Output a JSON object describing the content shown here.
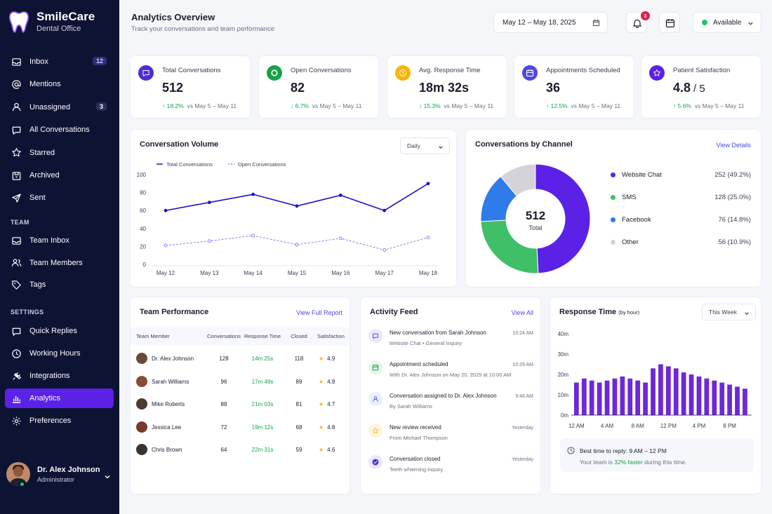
{
  "brand": {
    "name": "SmileCare",
    "subtitle": "Dental Office"
  },
  "nav": [
    {
      "label": "Inbox",
      "icon": "inbox-icon",
      "badge": "12"
    },
    {
      "label": "Mentions",
      "icon": "at-icon"
    },
    {
      "label": "Unassigned",
      "icon": "user-icon",
      "badge": "3"
    },
    {
      "label": "All Conversations",
      "icon": "chat-icon"
    },
    {
      "label": "Starred",
      "icon": "star-icon"
    },
    {
      "label": "Archived",
      "icon": "archive-icon"
    },
    {
      "label": "Sent",
      "icon": "send-icon"
    }
  ],
  "team_section": "TEAM",
  "team_nav": [
    {
      "label": "Team Inbox",
      "icon": "inbox-icon"
    },
    {
      "label": "Team Members",
      "icon": "users-icon"
    },
    {
      "label": "Tags",
      "icon": "tag-icon"
    }
  ],
  "settings_section": "SETTINGS",
  "settings_nav": [
    {
      "label": "Quick Replies",
      "icon": "chat-icon"
    },
    {
      "label": "Working Hours",
      "icon": "clock-icon"
    },
    {
      "label": "Integrations",
      "icon": "plug-icon"
    },
    {
      "label": "Analytics",
      "icon": "bar-chart-icon",
      "active": true
    },
    {
      "label": "Preferences",
      "icon": "gear-icon"
    }
  ],
  "profile": {
    "name": "Dr. Alex Johnson",
    "role": "Administrator"
  },
  "header": {
    "title": "Analytics Overview",
    "subtitle": "Track your conversations and team performance",
    "date_range": "May 12 – May 18, 2025",
    "notif_count": "3",
    "status": "Available"
  },
  "kpis": [
    {
      "label": "Total Conversations",
      "value": "512",
      "trend": "↑ 18.2%",
      "compare": "vs May 5 – May 11",
      "color": "#4f2bd8",
      "icon": "chat-icon"
    },
    {
      "label": "Open Conversations",
      "value": "82",
      "trend": "↓ 6.7%",
      "compare": "vs May 5 – May 11",
      "color": "#16a34a",
      "icon": "circle-icon"
    },
    {
      "label": "Avg. Response Time",
      "value": "18m 32s",
      "trend": "↓ 15.3%",
      "compare": "vs May 5 – May 11",
      "color": "#f5b50a",
      "icon": "clock-icon"
    },
    {
      "label": "Appointments Scheduled",
      "value": "36",
      "trend": "↑ 12.5%",
      "compare": "vs May 5 – May 11",
      "color": "#4f46e5",
      "icon": "calendar-icon"
    },
    {
      "label": "Patient Satisfaction",
      "value": "4.8",
      "suffix": "/ 5",
      "trend": "↑ 5.6%",
      "compare": "vs May 5 – May 11",
      "color": "#5b21e6",
      "icon": "star-icon"
    }
  ],
  "volume": {
    "title": "Conversation Volume",
    "range": "Daily"
  },
  "channel": {
    "title": "Conversations by Channel",
    "link": "View Details",
    "center_value": "512",
    "center_label": "Total"
  },
  "team": {
    "title": "Team Performance",
    "link": "View Full Report",
    "columns": [
      "Team Member",
      "Conversations",
      "Response Time",
      "Closed",
      "Satisfaction"
    ],
    "rows": [
      {
        "name": "Dr. Alex Johnson",
        "conv": "128",
        "resp": "14m 25s",
        "closed": "118",
        "sat": "4.9",
        "avatar": "#6b4a3a"
      },
      {
        "name": "Sarah Williams",
        "conv": "96",
        "resp": "17m 48s",
        "closed": "89",
        "sat": "4.8",
        "avatar": "#8a4a3a"
      },
      {
        "name": "Mike Roberts",
        "conv": "88",
        "resp": "21m 03s",
        "closed": "81",
        "sat": "4.7",
        "avatar": "#4a3a34"
      },
      {
        "name": "Jessica Lee",
        "conv": "72",
        "resp": "19m 12s",
        "closed": "68",
        "sat": "4.8",
        "avatar": "#7a3a2a"
      },
      {
        "name": "Chris Brown",
        "conv": "64",
        "resp": "22m 31s",
        "closed": "59",
        "sat": "4.6",
        "avatar": "#3a3430"
      }
    ]
  },
  "feed": {
    "title": "Activity Feed",
    "link": "View All",
    "items": [
      {
        "title": "New conversation from Sarah Johnson",
        "sub": "Website Chat   •   General Inquiry",
        "time": "10:24 AM",
        "color": "#4f2bd8",
        "bg": "#ece8ff",
        "icon": "chat-icon"
      },
      {
        "title": "Appointment scheduled",
        "sub": "With Dr. Alex Johnson on May 20, 2025 at 10:00 AM",
        "time": "10:29 AM",
        "color": "#16a34a",
        "bg": "#e3f7ea",
        "icon": "calendar-icon"
      },
      {
        "title": "Conversation assigned to Dr. Alex Johnson",
        "sub": "By Sarah Williams",
        "time": "9:48 AM",
        "color": "#4f46e5",
        "bg": "#eceffd",
        "icon": "user-icon"
      },
      {
        "title": "New review received",
        "sub": "From Michael Thompson",
        "time": "Yesterday",
        "color": "#f5b50a",
        "bg": "#fdf4dd",
        "icon": "star-icon"
      },
      {
        "title": "Conversation closed",
        "sub": "Teeth whitening inquiry",
        "time": "Yesterday",
        "color": "#4f2bd8",
        "bg": "#ece8ff",
        "icon": "check-icon"
      }
    ]
  },
  "response": {
    "title": "Response Time",
    "title_note": "(by hour)",
    "range": "This Week",
    "tip_title": "Best time to reply: 9 AM – 12 PM",
    "tip_pre": "Your team is ",
    "tip_hl": "32% faster",
    "tip_post": " during this time."
  },
  "chart_data": [
    {
      "type": "line",
      "x": [
        "May 12",
        "May 13",
        "May 14",
        "May 15",
        "May 16",
        "May 17",
        "May 18"
      ],
      "series": [
        {
          "name": "Total Conversations",
          "values": [
            60,
            69,
            78,
            65,
            77,
            60,
            90
          ],
          "color": "#1f13c9"
        },
        {
          "name": "Open Conversations",
          "values": [
            21,
            26,
            32,
            22,
            29,
            16,
            30
          ],
          "color": "#8b7cf2"
        }
      ],
      "ylim": [
        0,
        100
      ],
      "yticks": [
        0,
        20,
        40,
        60,
        80,
        100
      ]
    },
    {
      "type": "pie",
      "slices": [
        {
          "label": "Website Chat",
          "value": 252,
          "text": "252 (49.2%)",
          "color": "#5b21e6"
        },
        {
          "label": "SMS",
          "value": 128,
          "text": "128 (25.0%)",
          "color": "#3fbf68"
        },
        {
          "label": "Facebook",
          "value": 76,
          "text": "76 (14.8%)",
          "color": "#2f7bea"
        },
        {
          "label": "Other",
          "value": 56,
          "text": "56 (10.9%)",
          "color": "#d4d4d8"
        }
      ]
    },
    {
      "type": "bar",
      "values": [
        16,
        18,
        17,
        16,
        17,
        18,
        19,
        18,
        17,
        16,
        23,
        25,
        24,
        23,
        21,
        20,
        19,
        18,
        17,
        16,
        15,
        14,
        13
      ],
      "xticks": [
        "12 AM",
        "4 AM",
        "8 AM",
        "12 PM",
        "4 PM",
        "8 PM"
      ],
      "yticks": [
        "0m",
        "10m",
        "20m",
        "30m",
        "40m"
      ],
      "ylim": [
        0,
        40
      ],
      "color": "#6d28d9"
    }
  ]
}
